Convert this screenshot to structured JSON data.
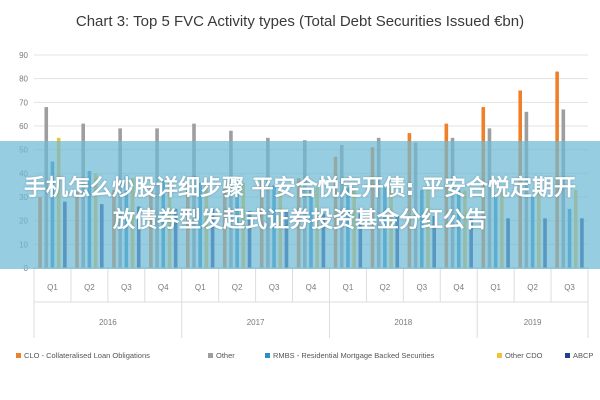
{
  "chart_data": {
    "type": "bar",
    "title": "Chart 3: Top 5 FVC Activity types (Total Debt Securities Issued €bn)",
    "ylim": [
      0,
      90
    ],
    "yticks": [
      0,
      10,
      20,
      30,
      40,
      50,
      60,
      70,
      80,
      90
    ],
    "categories": [
      "Q1",
      "Q2",
      "Q3",
      "Q4",
      "Q1",
      "Q2",
      "Q3",
      "Q4",
      "Q1",
      "Q2",
      "Q3",
      "Q4",
      "Q1",
      "Q2",
      "Q3"
    ],
    "years": [
      {
        "label": "2016",
        "start": 0,
        "count": 4
      },
      {
        "label": "2017",
        "start": 4,
        "count": 4
      },
      {
        "label": "2018",
        "start": 8,
        "count": 4
      },
      {
        "label": "2019",
        "start": 12,
        "count": 3
      }
    ],
    "series": [
      {
        "name": "CLO - Collateralised Loan Obligations",
        "color": "#f07f2a",
        "values": [
          30,
          32,
          33,
          34,
          35,
          35,
          37,
          38,
          47,
          51,
          57,
          61,
          68,
          75,
          83
        ]
      },
      {
        "name": "Other",
        "color": "#9e9e9e",
        "values": [
          68,
          61,
          59,
          59,
          61,
          58,
          55,
          54,
          52,
          55,
          53,
          55,
          59,
          66,
          67
        ]
      },
      {
        "name": "RMBS - Residential Mortgage Backed Securities",
        "color": "#2e8fc5",
        "values": [
          45,
          41,
          39,
          37,
          36,
          36,
          35,
          34,
          34,
          34,
          33,
          33,
          31,
          30,
          25
        ]
      },
      {
        "name": "Other CDO",
        "color": "#f2c232",
        "values": [
          55,
          40,
          38,
          37,
          37,
          36,
          35,
          34,
          34,
          34,
          33,
          33,
          32,
          34,
          33
        ]
      },
      {
        "name": "ABCP",
        "color": "#1f3f8f",
        "values": [
          28,
          27,
          26,
          25,
          25,
          24,
          24,
          23,
          23,
          22,
          22,
          22,
          21,
          21,
          21
        ]
      }
    ],
    "grid": true,
    "legend_position": "bottom"
  },
  "overlay": {
    "text": "手机怎么炒股详细步骤 平安合悦定开债: 平安合悦定期开放债券型发起式证券投资基金分红公告"
  }
}
